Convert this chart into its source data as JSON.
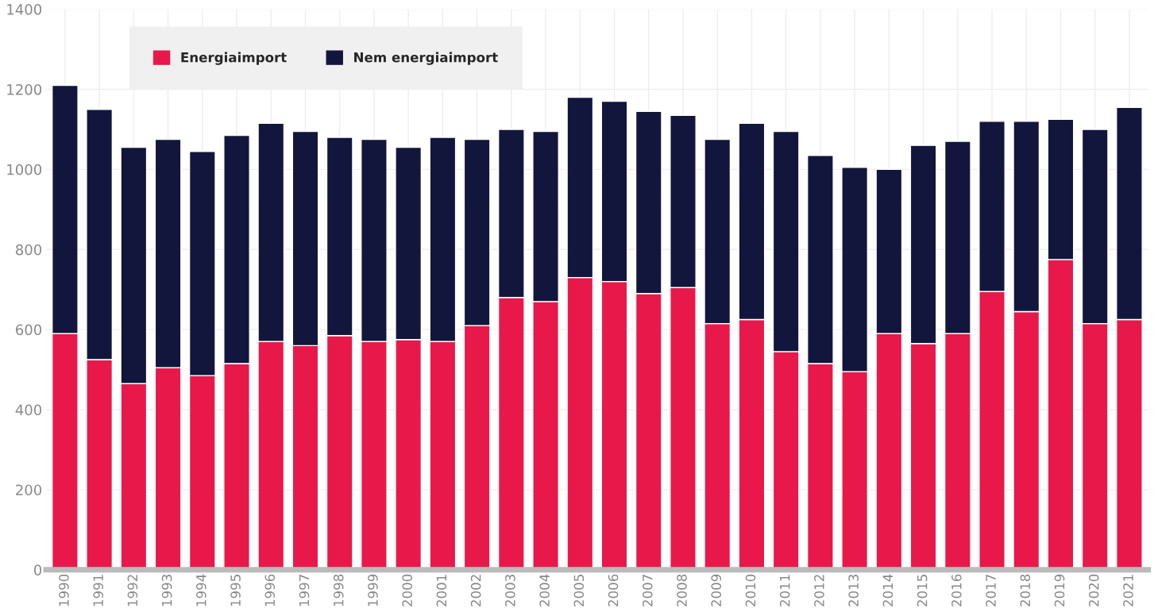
{
  "chart_data": {
    "type": "bar",
    "stacked": true,
    "categories": [
      "1990",
      "1991",
      "1992",
      "1993",
      "1994",
      "1995",
      "1996",
      "1997",
      "1998",
      "1999",
      "2000",
      "2001",
      "2002",
      "2003",
      "2004",
      "2005",
      "2006",
      "2007",
      "2008",
      "2009",
      "2010",
      "2011",
      "2012",
      "2013",
      "2014",
      "2015",
      "2016",
      "2017",
      "2018",
      "2019",
      "2020",
      "2021"
    ],
    "series": [
      {
        "name": "Energiaimport",
        "color": "#e8194a",
        "values": [
          590,
          525,
          465,
          505,
          485,
          515,
          570,
          560,
          585,
          570,
          575,
          570,
          610,
          680,
          670,
          730,
          720,
          690,
          705,
          615,
          625,
          545,
          515,
          495,
          590,
          565,
          590,
          695,
          645,
          775,
          615,
          625
        ]
      },
      {
        "name": "Nem energiaimport",
        "color": "#12163d",
        "values": [
          620,
          625,
          590,
          570,
          560,
          570,
          545,
          535,
          495,
          505,
          480,
          510,
          465,
          420,
          425,
          450,
          450,
          455,
          430,
          460,
          490,
          550,
          520,
          510,
          410,
          495,
          480,
          425,
          475,
          350,
          485,
          530
        ]
      }
    ],
    "ylim": [
      0,
      1400
    ],
    "yticks": [
      0,
      200,
      400,
      600,
      800,
      1000,
      1200,
      1400
    ],
    "grid": true,
    "legend": "top left"
  }
}
